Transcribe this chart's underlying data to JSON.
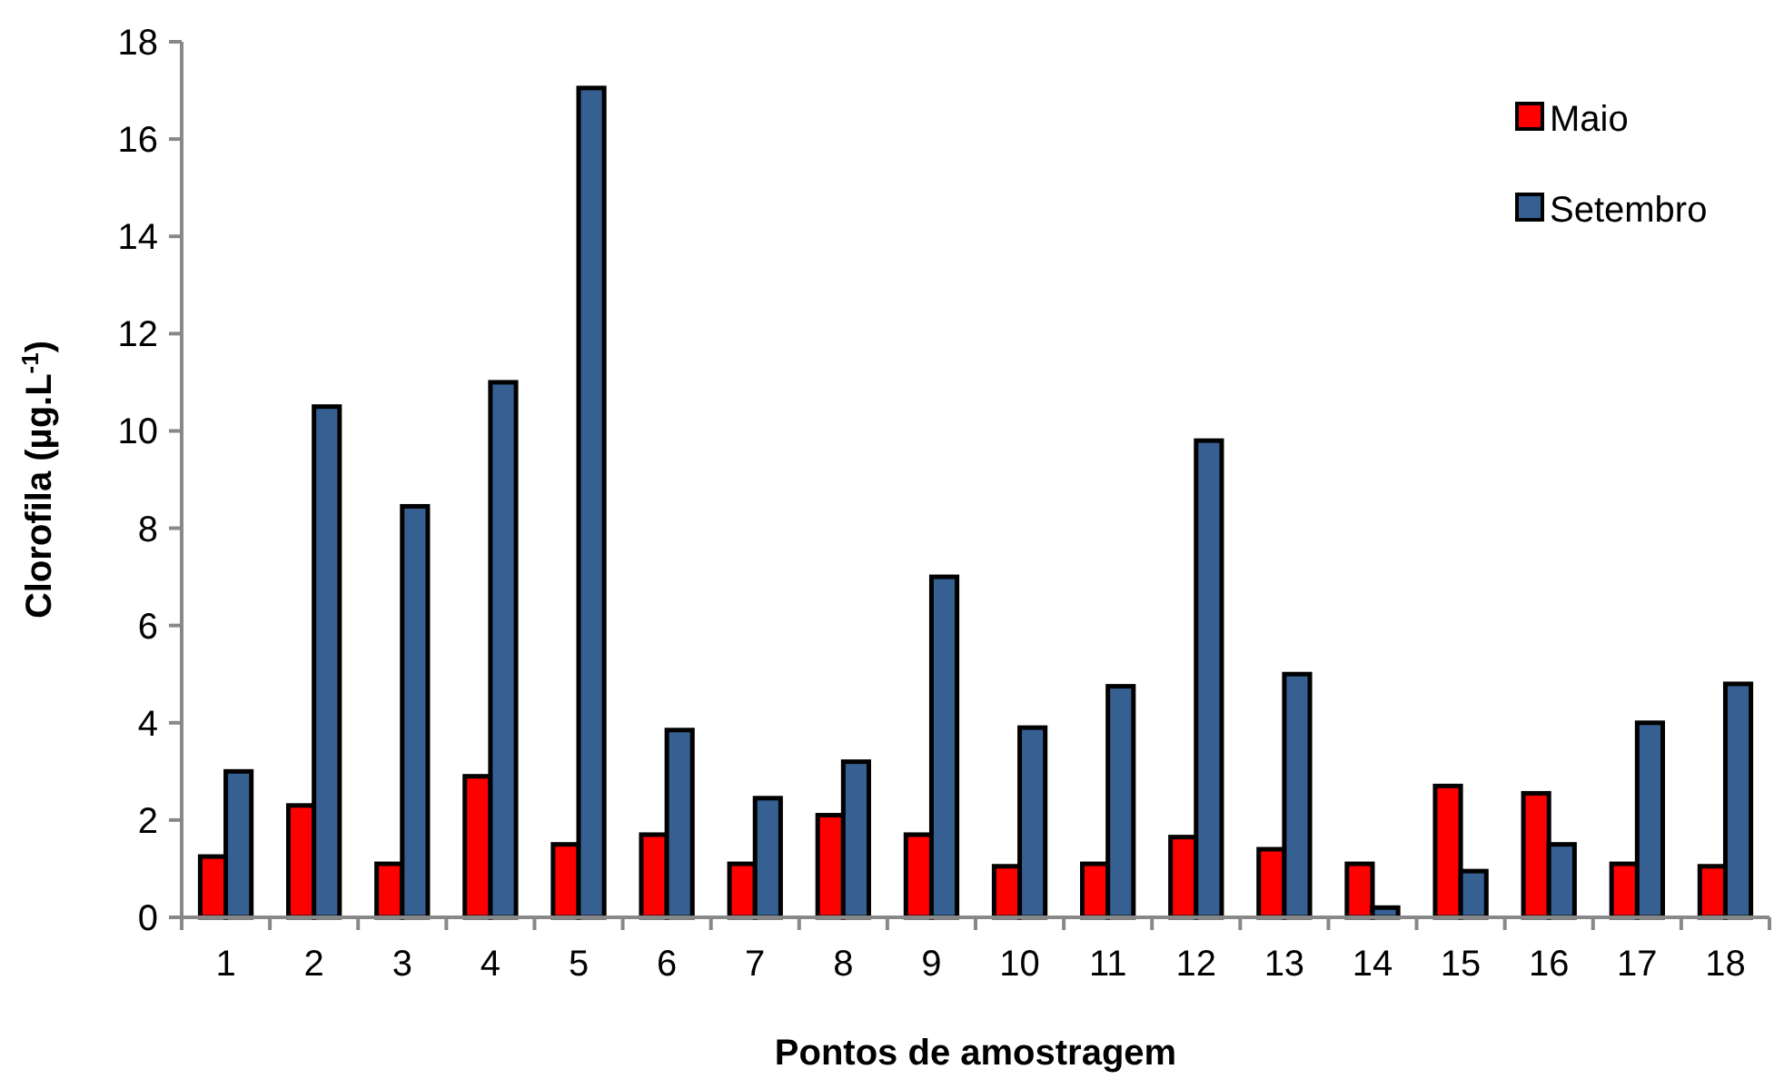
{
  "chart_data": {
    "type": "bar",
    "xlabel": "Pontos de amostragem",
    "ylabel": "Clorofila (µg.L$^{-1}$)",
    "categories": [
      "1",
      "2",
      "3",
      "4",
      "5",
      "6",
      "7",
      "8",
      "9",
      "10",
      "11",
      "12",
      "13",
      "14",
      "15",
      "16",
      "17",
      "18"
    ],
    "series": [
      {
        "name": "Maio",
        "color": "#ff0000",
        "values": [
          1.25,
          2.3,
          1.1,
          2.9,
          1.5,
          1.7,
          1.1,
          2.1,
          1.7,
          1.05,
          1.1,
          1.65,
          1.4,
          1.1,
          2.7,
          2.55,
          1.1,
          1.05
        ]
      },
      {
        "name": "Setembro",
        "color": "#376092",
        "values": [
          3.0,
          10.5,
          8.45,
          11.0,
          17.05,
          3.85,
          2.45,
          3.2,
          7.0,
          3.9,
          4.75,
          9.8,
          5.0,
          0.2,
          0.95,
          1.5,
          4.0,
          4.8
        ]
      }
    ],
    "ylim": [
      0,
      18
    ],
    "yticks": [
      0,
      2,
      4,
      6,
      8,
      10,
      12,
      14,
      16,
      18
    ],
    "legend": "top right"
  }
}
